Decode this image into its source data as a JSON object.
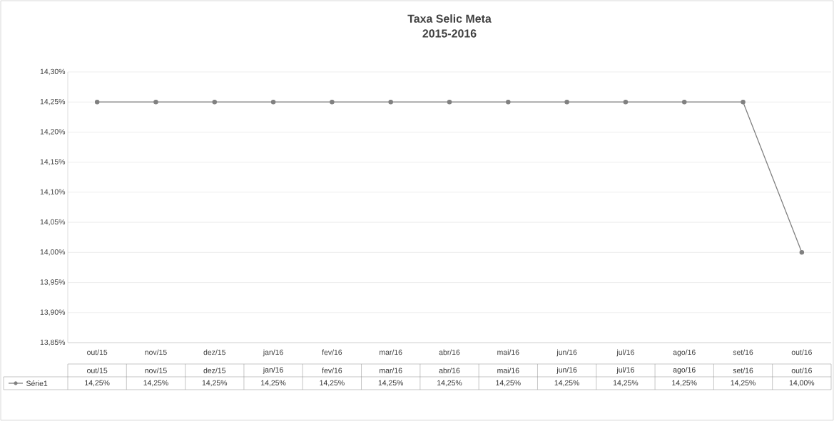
{
  "chart_data": {
    "type": "line",
    "title": "Taxa Selic Meta",
    "subtitle": "2015-2016",
    "categories": [
      "out/15",
      "nov/15",
      "dez/15",
      "jan/16",
      "fev/16",
      "mar/16",
      "abr/16",
      "mai/16",
      "jun/16",
      "jul/16",
      "ago/16",
      "set/16",
      "out/16"
    ],
    "series": [
      {
        "name": "Série1",
        "color": "#808080",
        "values": [
          14.25,
          14.25,
          14.25,
          14.25,
          14.25,
          14.25,
          14.25,
          14.25,
          14.25,
          14.25,
          14.25,
          14.25,
          14.0
        ],
        "value_labels": [
          "14,25%",
          "14,25%",
          "14,25%",
          "14,25%",
          "14,25%",
          "14,25%",
          "14,25%",
          "14,25%",
          "14,25%",
          "14,25%",
          "14,25%",
          "14,25%",
          "14,00%"
        ]
      }
    ],
    "ylim": [
      13.85,
      14.3
    ],
    "yticks": [
      {
        "value": 13.85,
        "label": "13,85%"
      },
      {
        "value": 13.9,
        "label": "13,90%"
      },
      {
        "value": 13.95,
        "label": "13,95%"
      },
      {
        "value": 14.0,
        "label": "14,00%"
      },
      {
        "value": 14.05,
        "label": "14,05%"
      },
      {
        "value": 14.1,
        "label": "14,10%"
      },
      {
        "value": 14.15,
        "label": "14,15%"
      },
      {
        "value": 14.2,
        "label": "14,20%"
      },
      {
        "value": 14.25,
        "label": "14,25%"
      },
      {
        "value": 14.3,
        "label": "14,30%"
      }
    ],
    "grid": "y",
    "legend": "bottom",
    "marker": "circle",
    "line_style": "solid"
  }
}
